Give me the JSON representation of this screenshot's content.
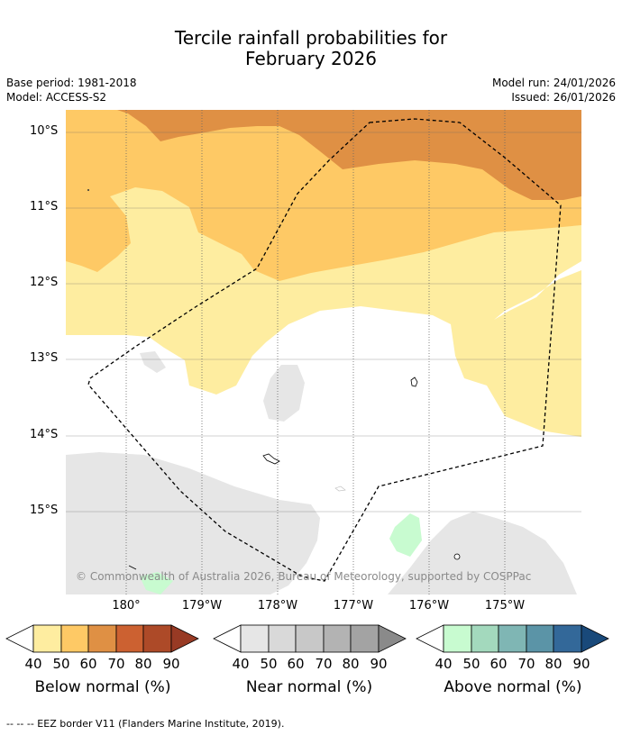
{
  "title_line1": "Tercile rainfall probabilities for",
  "title_line2": "February 2026",
  "base_period": "Base period: 1981-2018",
  "model": "Model: ACCESS-S2",
  "model_run": "Model run: 24/01/2026",
  "issued": "Issued: 26/01/2026",
  "lat_labels": [
    "10°S",
    "11°S",
    "12°S",
    "13°S",
    "14°S",
    "15°S"
  ],
  "lon_labels": [
    "180°",
    "179°W",
    "178°W",
    "177°W",
    "176°W",
    "175°W"
  ],
  "copyright": "© Commonwealth of Australia 2026, Bureau of Meteorology, supported by COSPPac",
  "colorbars": [
    {
      "name": "below",
      "label": "Below normal (%)",
      "ticks": [
        "40",
        "50",
        "60",
        "70",
        "80",
        "90"
      ],
      "colors": [
        "#feeda0",
        "#fec965",
        "#df9044",
        "#cc6131",
        "#ad4a28",
        "#983a24"
      ]
    },
    {
      "name": "near",
      "label": "Near normal (%)",
      "ticks": [
        "40",
        "50",
        "60",
        "70",
        "80",
        "90"
      ],
      "colors": [
        "#e6e6e6",
        "#d9d9d9",
        "#c8c8c8",
        "#b3b3b3",
        "#a3a3a3",
        "#8a8a8a"
      ]
    },
    {
      "name": "above",
      "label": "Above normal (%)",
      "ticks": [
        "40",
        "50",
        "60",
        "70",
        "80",
        "90"
      ],
      "colors": [
        "#c8fbd0",
        "#a3d9bd",
        "#7fb6b4",
        "#5b94a7",
        "#336899",
        "#19497a"
      ]
    }
  ],
  "footer": "--  --  -- EEZ border V11 (Flanders Marine Institute, 2019)."
}
